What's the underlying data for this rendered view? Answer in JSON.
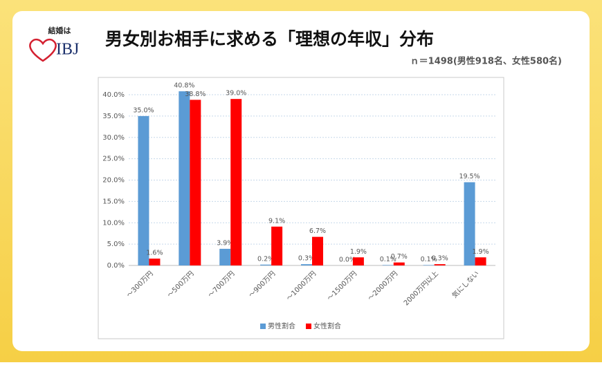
{
  "logo": {
    "caption": "結婚は",
    "text": "IBJ"
  },
  "chart_data": {
    "type": "bar",
    "title": "男女別お相手に求める「理想の年収」分布",
    "subtitle": "ｎ＝1498(男性918名、女性580名)",
    "categories": [
      "～300万円",
      "～500万円",
      "～700万円",
      "～900万円",
      "～1000万円",
      "～1500万円",
      "～2000万円",
      "2000万円以上",
      "気にしない"
    ],
    "series": [
      {
        "name": "男性割合",
        "color": "#5b9bd5",
        "values": [
          35.0,
          40.8,
          3.9,
          0.2,
          0.3,
          0.0,
          0.1,
          0.1,
          19.5
        ],
        "value_labels": [
          "35.0%",
          "40.8%",
          "3.9%",
          "0.2%",
          "0.3%",
          "0.0%",
          "0.1%",
          "0.1%",
          "19.5%"
        ]
      },
      {
        "name": "女性割合",
        "color": "#ff0000",
        "values": [
          1.6,
          38.8,
          39.0,
          9.1,
          6.7,
          1.9,
          0.7,
          0.3,
          1.9
        ],
        "value_labels": [
          "1.6%",
          "38.8%",
          "39.0%",
          "9.1%",
          "6.7%",
          "1.9%",
          "0.7%",
          "0.3%",
          "1.9%"
        ]
      }
    ],
    "ylim": [
      0,
      40
    ],
    "yticks": [
      {
        "value": 0,
        "label": "0.0%"
      },
      {
        "value": 5,
        "label": "5.0%"
      },
      {
        "value": 10,
        "label": "10.0%"
      },
      {
        "value": 15,
        "label": "15.0%"
      },
      {
        "value": 20,
        "label": "20.0%"
      },
      {
        "value": 25,
        "label": "25.0%"
      },
      {
        "value": 30,
        "label": "30.0%"
      },
      {
        "value": 35,
        "label": "35.0%"
      },
      {
        "value": 40,
        "label": "40.0%"
      }
    ],
    "grid": true,
    "legend": "bottom"
  }
}
